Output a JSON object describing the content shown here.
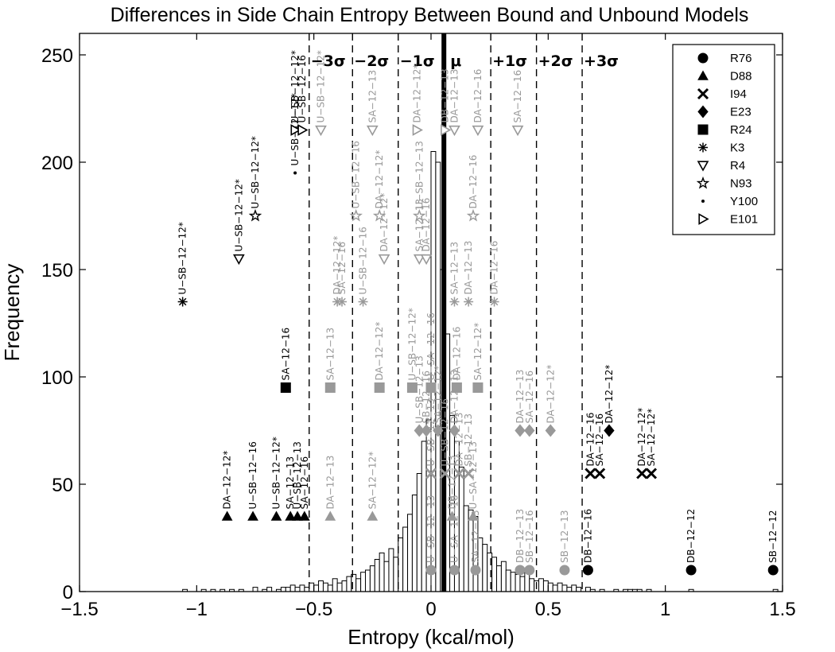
{
  "chart_data": {
    "type": "bar",
    "title": "Differences in Side Chain Entropy Between Bound and Unbound Models",
    "xlabel": "Entropy (kcal/mol)",
    "ylabel": "Frequency",
    "xlim": [
      -1.5,
      1.5
    ],
    "ylim": [
      0,
      260
    ],
    "xticks": [
      -1.5,
      -1,
      -0.5,
      0,
      0.5,
      1,
      1.5
    ],
    "xtick_labels": [
      "−1.5",
      "−1",
      "−0.5",
      "0",
      "0.5",
      "1",
      "1.5"
    ],
    "yticks": [
      0,
      50,
      100,
      150,
      200,
      250
    ],
    "ytick_labels": [
      "0",
      "50",
      "100",
      "150",
      "200",
      "250"
    ],
    "grid": false,
    "legend_position": "top-right",
    "histogram": {
      "bin_width": 0.02,
      "bins": [
        [
          -1.06,
          1
        ],
        [
          -0.98,
          1
        ],
        [
          -0.94,
          1
        ],
        [
          -0.9,
          1
        ],
        [
          -0.86,
          1
        ],
        [
          -0.82,
          1
        ],
        [
          -0.76,
          2
        ],
        [
          -0.72,
          1
        ],
        [
          -0.7,
          2
        ],
        [
          -0.66,
          1
        ],
        [
          -0.64,
          2
        ],
        [
          -0.62,
          2
        ],
        [
          -0.6,
          3
        ],
        [
          -0.58,
          2
        ],
        [
          -0.56,
          3
        ],
        [
          -0.54,
          2
        ],
        [
          -0.52,
          4
        ],
        [
          -0.5,
          3
        ],
        [
          -0.48,
          5
        ],
        [
          -0.46,
          4
        ],
        [
          -0.44,
          3
        ],
        [
          -0.42,
          6
        ],
        [
          -0.4,
          4
        ],
        [
          -0.38,
          5
        ],
        [
          -0.36,
          7
        ],
        [
          -0.34,
          8
        ],
        [
          -0.32,
          6
        ],
        [
          -0.3,
          9
        ],
        [
          -0.28,
          10
        ],
        [
          -0.26,
          12
        ],
        [
          -0.24,
          15
        ],
        [
          -0.22,
          18
        ],
        [
          -0.2,
          14
        ],
        [
          -0.18,
          20
        ],
        [
          -0.16,
          16
        ],
        [
          -0.14,
          25
        ],
        [
          -0.12,
          30
        ],
        [
          -0.1,
          36
        ],
        [
          -0.08,
          45
        ],
        [
          -0.06,
          55
        ],
        [
          -0.04,
          70
        ],
        [
          -0.02,
          80
        ],
        [
          0.0,
          205
        ],
        [
          0.02,
          200
        ],
        [
          0.04,
          150
        ],
        [
          0.06,
          120
        ],
        [
          0.08,
          82
        ],
        [
          0.1,
          70
        ],
        [
          0.12,
          58
        ],
        [
          0.14,
          40
        ],
        [
          0.16,
          38
        ],
        [
          0.18,
          35
        ],
        [
          0.2,
          25
        ],
        [
          0.22,
          22
        ],
        [
          0.24,
          18
        ],
        [
          0.26,
          16
        ],
        [
          0.28,
          12
        ],
        [
          0.3,
          14
        ],
        [
          0.32,
          10
        ],
        [
          0.34,
          9
        ],
        [
          0.36,
          8
        ],
        [
          0.38,
          7
        ],
        [
          0.4,
          9
        ],
        [
          0.42,
          6
        ],
        [
          0.44,
          5
        ],
        [
          0.46,
          6
        ],
        [
          0.48,
          5
        ],
        [
          0.5,
          4
        ],
        [
          0.52,
          3
        ],
        [
          0.54,
          4
        ],
        [
          0.56,
          3
        ],
        [
          0.58,
          2
        ],
        [
          0.6,
          3
        ],
        [
          0.62,
          2
        ],
        [
          0.66,
          2
        ],
        [
          0.68,
          1
        ],
        [
          0.72,
          1
        ],
        [
          0.78,
          1
        ],
        [
          0.82,
          1
        ],
        [
          0.84,
          1
        ],
        [
          0.86,
          1
        ],
        [
          0.88,
          1
        ],
        [
          0.92,
          1
        ],
        [
          1.1,
          1
        ],
        [
          1.46,
          1
        ]
      ]
    },
    "mean_line": {
      "x": 0.055,
      "label": "μ"
    },
    "sigma_lines": [
      {
        "x": -0.52,
        "label": "−3σ"
      },
      {
        "x": -0.335,
        "label": "−2σ"
      },
      {
        "x": -0.14,
        "label": "−1σ"
      },
      {
        "x": 0.255,
        "label": "+1σ"
      },
      {
        "x": 0.45,
        "label": "+2σ"
      },
      {
        "x": 0.645,
        "label": "+3σ"
      }
    ],
    "series": [
      {
        "name": "R76",
        "marker": "circle",
        "points": [
          {
            "x": 0.67,
            "y": 10,
            "label": "DB−12−16",
            "color": "#000000"
          },
          {
            "x": 1.11,
            "y": 10,
            "label": "DB−12−12",
            "color": "#000000"
          },
          {
            "x": 1.46,
            "y": 10,
            "label": "SB−12−12",
            "color": "#000000"
          },
          {
            "x": 0.0,
            "y": 10,
            "label": "U−SB−12−13",
            "color": "#999999"
          },
          {
            "x": 0.1,
            "y": 10,
            "label": "U−SA−12−16",
            "color": "#999999"
          },
          {
            "x": 0.19,
            "y": 10,
            "label": "SA−12−13",
            "color": "#999999"
          },
          {
            "x": 0.38,
            "y": 10,
            "label": "DB−12−13",
            "color": "#999999"
          },
          {
            "x": 0.42,
            "y": 10,
            "label": "SB−12−16",
            "color": "#999999"
          },
          {
            "x": 0.57,
            "y": 10,
            "label": "SB−12−13",
            "color": "#999999"
          }
        ]
      },
      {
        "name": "D88",
        "marker": "triangle-up",
        "points": [
          {
            "x": -0.87,
            "y": 35,
            "label": "DA−12−12*",
            "color": "#000000"
          },
          {
            "x": -0.76,
            "y": 35,
            "label": "U−SB−12−16",
            "color": "#000000"
          },
          {
            "x": -0.66,
            "y": 35,
            "label": "U−SB−12−12*",
            "color": "#000000"
          },
          {
            "x": -0.6,
            "y": 35,
            "label": "SA−12−13",
            "color": "#000000"
          },
          {
            "x": -0.57,
            "y": 35,
            "label": "U−SB−12−13",
            "color": "#000000"
          },
          {
            "x": -0.54,
            "y": 35,
            "label": "SA−12−16",
            "color": "#000000"
          },
          {
            "x": -0.43,
            "y": 35,
            "label": "DA−12−13",
            "color": "#999999"
          },
          {
            "x": -0.25,
            "y": 35,
            "label": "SA−12−12*",
            "color": "#999999"
          },
          {
            "x": 0.09,
            "y": 35,
            "label": "DB−12−13",
            "color": "#999999"
          },
          {
            "x": 0.18,
            "y": 35,
            "label": "U−SA−12−13",
            "color": "#999999"
          }
        ]
      },
      {
        "name": "I94",
        "marker": "x",
        "points": [
          {
            "x": 0.68,
            "y": 55,
            "label": "DA−12−16",
            "color": "#000000"
          },
          {
            "x": 0.72,
            "y": 55,
            "label": "SA−12−16",
            "color": "#000000"
          },
          {
            "x": 0.9,
            "y": 55,
            "label": "DA−12−12*",
            "color": "#000000"
          },
          {
            "x": 0.94,
            "y": 55,
            "label": "SA−12−12*",
            "color": "#000000"
          },
          {
            "x": 0.0,
            "y": 55,
            "label": "U−SB−12−13",
            "color": "#999999"
          },
          {
            "x": 0.06,
            "y": 55,
            "label": "U−SB−12−16",
            "color": "#999999"
          },
          {
            "x": 0.12,
            "y": 55,
            "label": "DA−12−13",
            "color": "#999999"
          },
          {
            "x": 0.16,
            "y": 55,
            "label": "SB−12−13",
            "color": "#999999"
          }
        ]
      },
      {
        "name": "E23",
        "marker": "diamond",
        "points": [
          {
            "x": 0.76,
            "y": 75,
            "label": "DA−12−12*",
            "color": "#000000"
          },
          {
            "x": -0.05,
            "y": 75,
            "label": "U−SB−12−13",
            "color": "#999999"
          },
          {
            "x": -0.02,
            "y": 75,
            "label": "SB−12−16",
            "color": "#999999"
          },
          {
            "x": 0.03,
            "y": 75,
            "label": "SA−12−12*",
            "color": "#999999"
          },
          {
            "x": 0.1,
            "y": 75,
            "label": "DA−12−13",
            "color": "#999999"
          },
          {
            "x": 0.38,
            "y": 75,
            "label": "DA−12−13",
            "color": "#999999"
          },
          {
            "x": 0.42,
            "y": 75,
            "label": "SA−12−16",
            "color": "#999999"
          },
          {
            "x": 0.51,
            "y": 75,
            "label": "DA−12−12*",
            "color": "#999999"
          }
        ]
      },
      {
        "name": "R24",
        "marker": "square",
        "points": [
          {
            "x": -0.62,
            "y": 95,
            "label": "SA−12−16",
            "color": "#000000"
          },
          {
            "x": -0.43,
            "y": 95,
            "label": "SA−12−13",
            "color": "#999999"
          },
          {
            "x": -0.22,
            "y": 95,
            "label": "DA−12−12*",
            "color": "#999999"
          },
          {
            "x": -0.08,
            "y": 95,
            "label": "U−SB−12−12*",
            "color": "#999999"
          },
          {
            "x": 0.0,
            "y": 95,
            "label": "U−SA−12−16",
            "color": "#999999"
          },
          {
            "x": 0.11,
            "y": 95,
            "label": "DA−12−16",
            "color": "#999999"
          },
          {
            "x": 0.2,
            "y": 95,
            "label": "SA−12−12*",
            "color": "#999999"
          }
        ]
      },
      {
        "name": "K3",
        "marker": "asterisk",
        "points": [
          {
            "x": -1.06,
            "y": 135,
            "label": "U−SB−12−12*",
            "color": "#000000"
          },
          {
            "x": -0.4,
            "y": 135,
            "label": "DA−12−12*",
            "color": "#999999"
          },
          {
            "x": -0.38,
            "y": 135,
            "label": "SA−12−16",
            "color": "#999999"
          },
          {
            "x": -0.29,
            "y": 135,
            "label": "U−SB−12−16",
            "color": "#999999"
          },
          {
            "x": 0.1,
            "y": 135,
            "label": "SA−12−13",
            "color": "#999999"
          },
          {
            "x": 0.16,
            "y": 135,
            "label": "DA−12−13",
            "color": "#999999"
          },
          {
            "x": 0.27,
            "y": 135,
            "label": "DA−12−16",
            "color": "#999999"
          }
        ]
      },
      {
        "name": "R4",
        "marker": "triangle-down",
        "points": [
          {
            "x": -0.82,
            "y": 155,
            "label": "U−SB−12−12*",
            "color": "#000000"
          },
          {
            "x": -0.2,
            "y": 155,
            "label": "DA−12−12*",
            "color": "#999999"
          },
          {
            "x": -0.05,
            "y": 155,
            "label": "SA−12−13",
            "color": "#999999"
          },
          {
            "x": -0.02,
            "y": 155,
            "label": "DA−12−16",
            "color": "#999999"
          },
          {
            "x": -0.47,
            "y": 215,
            "label": "U−SB−12−12*",
            "color": "#999999"
          },
          {
            "x": -0.25,
            "y": 215,
            "label": "SA−12−13",
            "color": "#999999"
          },
          {
            "x": 0.1,
            "y": 215,
            "label": "DA−12−13",
            "color": "#999999"
          },
          {
            "x": 0.2,
            "y": 215,
            "label": "DA−12−16",
            "color": "#999999"
          },
          {
            "x": 0.37,
            "y": 215,
            "label": "SA−12−16",
            "color": "#999999"
          }
        ]
      },
      {
        "name": "N93",
        "marker": "star",
        "points": [
          {
            "x": -0.75,
            "y": 175,
            "label": "U−SB−12−12*",
            "color": "#000000"
          },
          {
            "x": -0.32,
            "y": 175,
            "label": "U−SB−12−16",
            "color": "#999999"
          },
          {
            "x": -0.22,
            "y": 175,
            "label": "DA−12−12*",
            "color": "#999999"
          },
          {
            "x": -0.05,
            "y": 175,
            "label": "U−SB−12−13",
            "color": "#999999"
          },
          {
            "x": 0.18,
            "y": 175,
            "label": "DA−12−16",
            "color": "#999999"
          }
        ]
      },
      {
        "name": "Y100",
        "marker": "dot",
        "points": [
          {
            "x": -0.58,
            "y": 195,
            "label": "U−SB−12−12*",
            "color": "#000000"
          }
        ]
      },
      {
        "name": "E101",
        "marker": "triangle-right",
        "points": [
          {
            "x": -0.58,
            "y": 215,
            "label": "U−SB−12−12*",
            "color": "#000000"
          },
          {
            "x": -0.55,
            "y": 215,
            "label": "U−SB−12−16",
            "color": "#000000"
          },
          {
            "x": -0.06,
            "y": 215,
            "label": "DA−12−12*",
            "color": "#999999"
          },
          {
            "x": 0.06,
            "y": 215,
            "label": "DB−12−13",
            "color": "#999999"
          }
        ]
      }
    ]
  }
}
